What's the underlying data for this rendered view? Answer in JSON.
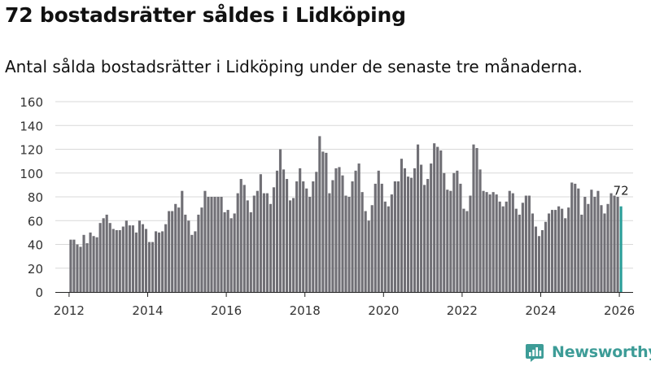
{
  "header": {
    "title": "72 bostadsrätter såldes i Lidköping",
    "subtitle": "Antal sålda bostadsrätter i Lidköping under de senaste tre månaderna."
  },
  "brand": {
    "name": "Newsworthy",
    "color": "#3d9c97"
  },
  "colors": {
    "bar": "#706f75",
    "highlight": "#2a9d98",
    "grid": "#d9d9d9",
    "axis": "#222222"
  },
  "chart_data": {
    "type": "bar",
    "title": "72 bostadsrätter såldes i Lidköping",
    "subtitle": "Antal sålda bostadsrätter i Lidköping under de senaste tre månaderna.",
    "xlabel": "",
    "ylabel": "",
    "ylim": [
      0,
      160
    ],
    "yticks": [
      0,
      20,
      40,
      60,
      80,
      100,
      120,
      140,
      160
    ],
    "xlim": [
      2011.65,
      2026.35
    ],
    "xticks": [
      2012,
      2014,
      2016,
      2018,
      2020,
      2022,
      2024,
      2026
    ],
    "grid": true,
    "start": [
      2012,
      1
    ],
    "frequency": "monthly",
    "highlight_index": 168,
    "annotation": {
      "index": 168,
      "text": "72"
    },
    "values": [
      44,
      44,
      40,
      38,
      48,
      41,
      50,
      47,
      46,
      58,
      62,
      65,
      58,
      53,
      52,
      52,
      55,
      60,
      56,
      56,
      50,
      60,
      57,
      53,
      42,
      42,
      51,
      50,
      51,
      57,
      68,
      68,
      74,
      71,
      85,
      65,
      60,
      48,
      51,
      65,
      71,
      85,
      80,
      80,
      80,
      80,
      80,
      67,
      69,
      62,
      66,
      83,
      95,
      90,
      77,
      67,
      81,
      85,
      99,
      83,
      83,
      74,
      88,
      102,
      120,
      103,
      95,
      77,
      79,
      93,
      104,
      93,
      87,
      80,
      93,
      101,
      131,
      118,
      117,
      83,
      94,
      104,
      105,
      98,
      81,
      80,
      93,
      102,
      108,
      84,
      68,
      60,
      73,
      91,
      102,
      91,
      76,
      72,
      82,
      93,
      93,
      112,
      104,
      97,
      96,
      104,
      124,
      107,
      90,
      95,
      108,
      125,
      122,
      119,
      100,
      86,
      85,
      100,
      102,
      91,
      70,
      68,
      81,
      124,
      121,
      103,
      85,
      84,
      82,
      84,
      82,
      76,
      72,
      76,
      85,
      83,
      70,
      65,
      75,
      81,
      81,
      66,
      55,
      47,
      52,
      59,
      66,
      69,
      69,
      72,
      70,
      62,
      71,
      92,
      91,
      87,
      65,
      80,
      74,
      86,
      80,
      85,
      73,
      66,
      74,
      83,
      81,
      80,
      72
    ]
  }
}
